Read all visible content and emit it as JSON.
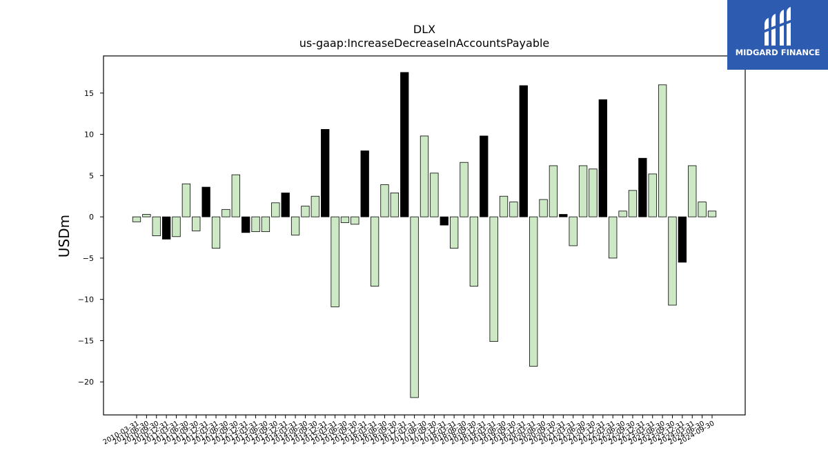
{
  "chart_data": {
    "type": "bar",
    "title": "DLX",
    "subtitle": "us-gaap:IncreaseDecreaseInAccountsPayable",
    "xlabel": "",
    "ylabel": "USDm",
    "ylim": [
      -24,
      19.5
    ],
    "yticks": [
      -20,
      -15,
      -10,
      -5,
      0,
      5,
      10,
      15
    ],
    "grid": false,
    "colors": {
      "quarter": "#cce8c4",
      "annual": "#000000",
      "edge": "#000000"
    },
    "categories": [
      "2010-03-31",
      "2010-06-30",
      "2010-09-30",
      "2010-12-31",
      "2011-03-31",
      "2011-06-30",
      "2011-09-30",
      "2011-12-31",
      "2012-03-31",
      "2012-06-30",
      "2012-09-30",
      "2012-12-31",
      "2013-03-31",
      "2013-06-30",
      "2013-09-30",
      "2013-12-31",
      "2014-03-31",
      "2014-06-30",
      "2014-09-30",
      "2014-12-31",
      "2015-03-31",
      "2015-06-30",
      "2015-09-30",
      "2015-12-31",
      "2016-03-31",
      "2016-06-30",
      "2016-09-30",
      "2016-12-31",
      "2017-03-31",
      "2017-06-30",
      "2017-09-30",
      "2017-12-31",
      "2018-03-31",
      "2018-06-30",
      "2018-09-30",
      "2018-12-31",
      "2019-03-31",
      "2019-06-30",
      "2019-09-30",
      "2019-12-31",
      "2020-03-31",
      "2020-06-30",
      "2020-09-30",
      "2020-12-31",
      "2021-03-31",
      "2021-06-30",
      "2021-09-30",
      "2021-12-31",
      "2022-03-31",
      "2022-06-30",
      "2022-09-30",
      "2022-12-31",
      "2023-03-31",
      "2023-06-30",
      "2023-09-30",
      "2023-12-31",
      "2024-03-31",
      "2024-06-30",
      "2024-09-30"
    ],
    "values": [
      -0.6,
      0.3,
      -2.3,
      -2.7,
      -2.4,
      4.0,
      -1.7,
      3.6,
      -3.8,
      0.9,
      5.1,
      -1.9,
      -1.8,
      -1.8,
      1.7,
      2.9,
      -2.2,
      1.3,
      2.5,
      10.6,
      -10.9,
      -0.7,
      -0.9,
      8.0,
      -8.4,
      3.9,
      2.9,
      17.5,
      -21.9,
      9.8,
      5.3,
      -1.0,
      -3.8,
      6.6,
      -8.4,
      9.8,
      -15.1,
      2.5,
      1.8,
      15.9,
      -18.1,
      2.1,
      6.2,
      0.3,
      -3.5,
      6.2,
      5.8,
      14.2,
      -5.0,
      0.7,
      3.2,
      7.1,
      5.2,
      16.0,
      -10.7,
      -5.5,
      6.2,
      1.8,
      0.7
    ],
    "annual": [
      false,
      false,
      false,
      true,
      false,
      false,
      false,
      true,
      false,
      false,
      false,
      true,
      false,
      false,
      false,
      true,
      false,
      false,
      false,
      true,
      false,
      false,
      false,
      true,
      false,
      false,
      false,
      true,
      false,
      false,
      false,
      true,
      false,
      false,
      false,
      true,
      false,
      false,
      false,
      true,
      false,
      false,
      false,
      true,
      false,
      false,
      false,
      true,
      false,
      false,
      false,
      true,
      false,
      false,
      false,
      true,
      false,
      false,
      false
    ]
  },
  "logo": {
    "text": "MIDGARD FINANCE",
    "color": "#2d5bb0"
  }
}
